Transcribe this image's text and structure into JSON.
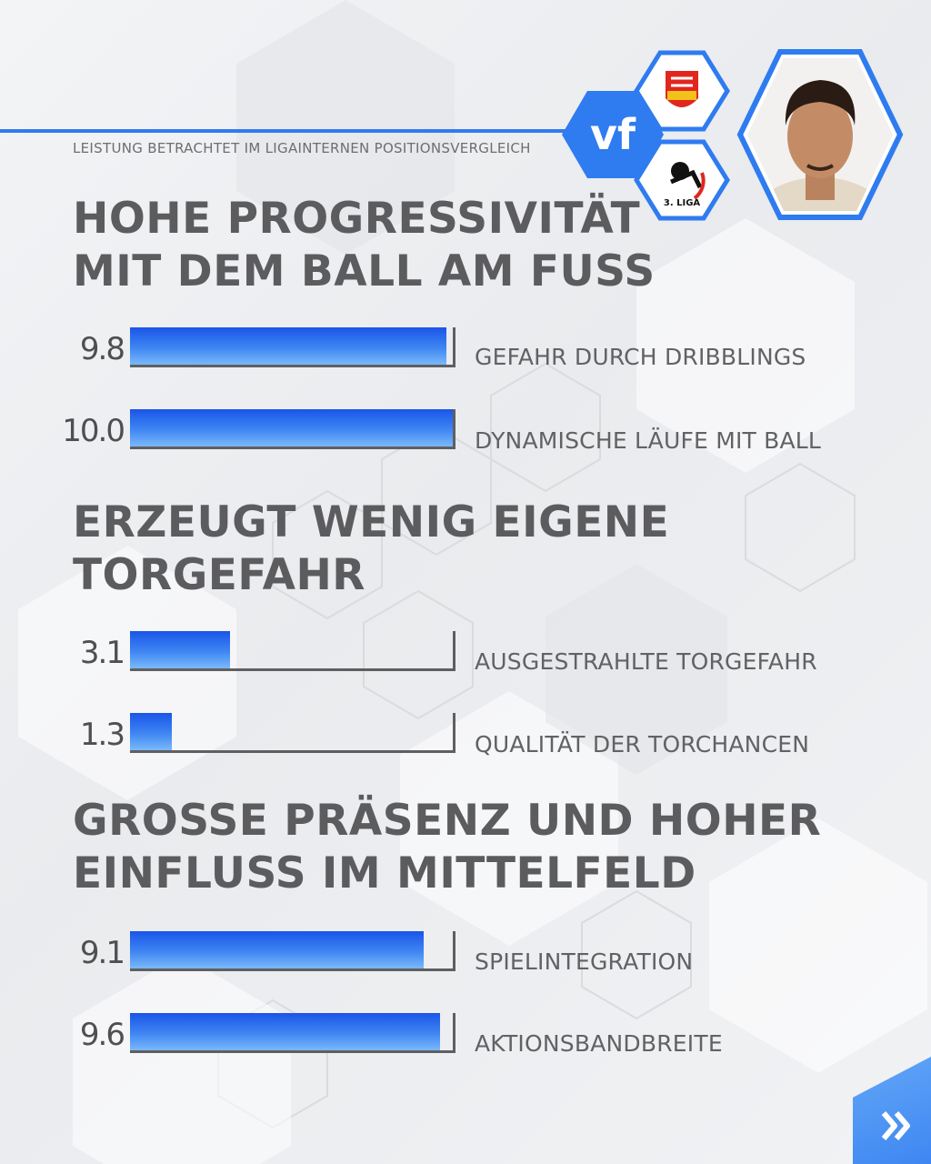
{
  "header": {
    "subtitle": "LEISTUNG BETRACHTET IM LIGAINTERNEN POSITIONSVERGLEICH",
    "logo_text": "vf",
    "league_label": "3. LIGA"
  },
  "colors": {
    "accent": "#2f7bf0",
    "bar_top": "#1a55e8",
    "bar_bottom": "#7ab9fb",
    "text": "#5c5c5e"
  },
  "chart_data": {
    "type": "bar",
    "orientation": "horizontal",
    "xlim": [
      0,
      10
    ],
    "sections": [
      {
        "title_line1": "HOHE PROGRESSIVITÄT",
        "title_line2": "MIT DEM BALL AM FUSS",
        "metrics": [
          {
            "label": "GEFAHR DURCH DRIBBLINGS",
            "value": 9.8,
            "value_text": "9.8"
          },
          {
            "label": "DYNAMISCHE LÄUFE MIT BALL",
            "value": 10.0,
            "value_text": "10.0"
          }
        ]
      },
      {
        "title_line1": "ERZEUGT WENIG EIGENE",
        "title_line2": "TORGEFAHR",
        "metrics": [
          {
            "label": "AUSGESTRAHLTE TORGEFAHR",
            "value": 3.1,
            "value_text": "3.1"
          },
          {
            "label": "QUALITÄT DER TORCHANCEN",
            "value": 1.3,
            "value_text": "1.3"
          }
        ]
      },
      {
        "title_line1": "GROSSE PRÄSENZ UND HOHER",
        "title_line2": "EINFLUSS IM MITTELFELD",
        "metrics": [
          {
            "label": "SPIELINTEGRATION",
            "value": 9.1,
            "value_text": "9.1"
          },
          {
            "label": "AKTIONSBANDBREITE",
            "value": 9.6,
            "value_text": "9.6"
          }
        ]
      }
    ]
  }
}
